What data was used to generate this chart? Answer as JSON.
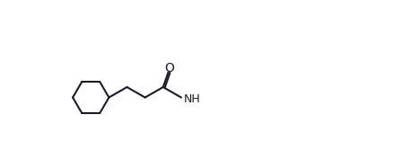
{
  "bg": "#ffffff",
  "lw": 1.5,
  "lw2": 1.5,
  "color": "#1a1a2e",
  "fontsize": 9,
  "fig_w": 4.38,
  "fig_h": 1.86,
  "dpi": 100
}
